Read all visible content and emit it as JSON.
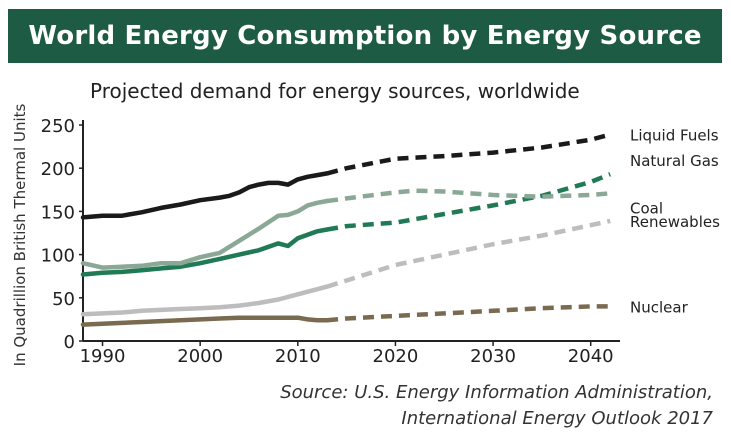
{
  "header": {
    "title": "World Energy Consumption by Energy Source"
  },
  "subtitle": "Projected demand for energy sources, worldwide",
  "source": {
    "line1": "Source: U.S. Energy Information Administration,",
    "line2": "International Energy Outlook 2017"
  },
  "colors": {
    "banner": "#1d5b45",
    "liquid_fuels": "#1a1a1a",
    "natural_gas": "#1f7a55",
    "coal": "#8aa895",
    "renewables": "#bdbdbd",
    "nuclear": "#7a6a50"
  },
  "chart_data": {
    "type": "line",
    "title": "World Energy Consumption by Energy Source",
    "subtitle": "Projected demand for energy sources, worldwide",
    "xlabel": "",
    "ylabel": "In Quadrillion British Thermal Units",
    "xlim": [
      1988,
      2043
    ],
    "ylim": [
      0,
      250
    ],
    "xticks": [
      "1990",
      "2000",
      "2010",
      "2020",
      "2030",
      "2040"
    ],
    "yticks": [
      "0",
      "50",
      "100",
      "150",
      "200",
      "250"
    ],
    "projection_start": 2012,
    "grid": false,
    "series": [
      {
        "name": "Liquid Fuels",
        "color": "#1a1a1a",
        "historical": [
          [
            1988,
            143
          ],
          [
            1990,
            145
          ],
          [
            1992,
            145
          ],
          [
            1994,
            149
          ],
          [
            1996,
            154
          ],
          [
            1998,
            158
          ],
          [
            2000,
            163
          ],
          [
            2002,
            166
          ],
          [
            2003,
            168
          ],
          [
            2004,
            172
          ],
          [
            2005,
            178
          ],
          [
            2006,
            181
          ],
          [
            2007,
            183
          ],
          [
            2008,
            183
          ],
          [
            2009,
            181
          ],
          [
            2010,
            187
          ],
          [
            2011,
            190
          ],
          [
            2012,
            192
          ],
          [
            2013,
            194
          ]
        ],
        "projected": [
          [
            2013,
            194
          ],
          [
            2015,
            200
          ],
          [
            2020,
            211
          ],
          [
            2025,
            214
          ],
          [
            2030,
            218
          ],
          [
            2035,
            224
          ],
          [
            2040,
            233
          ],
          [
            2042,
            239
          ]
        ]
      },
      {
        "name": "Natural Gas",
        "color": "#1f7a55",
        "historical": [
          [
            1988,
            77
          ],
          [
            1990,
            79
          ],
          [
            1992,
            80
          ],
          [
            1994,
            82
          ],
          [
            1996,
            84
          ],
          [
            1998,
            86
          ],
          [
            2000,
            90
          ],
          [
            2002,
            95
          ],
          [
            2004,
            100
          ],
          [
            2006,
            105
          ],
          [
            2008,
            113
          ],
          [
            2009,
            110
          ],
          [
            2010,
            119
          ],
          [
            2011,
            123
          ],
          [
            2012,
            127
          ],
          [
            2013,
            129
          ]
        ],
        "projected": [
          [
            2013,
            129
          ],
          [
            2015,
            133
          ],
          [
            2020,
            137
          ],
          [
            2025,
            147
          ],
          [
            2030,
            157
          ],
          [
            2035,
            168
          ],
          [
            2040,
            184
          ],
          [
            2042,
            193
          ]
        ]
      },
      {
        "name": "Coal",
        "color": "#8aa895",
        "historical": [
          [
            1988,
            90
          ],
          [
            1990,
            85
          ],
          [
            1992,
            86
          ],
          [
            1994,
            87
          ],
          [
            1996,
            90
          ],
          [
            1998,
            90
          ],
          [
            2000,
            97
          ],
          [
            2002,
            102
          ],
          [
            2004,
            116
          ],
          [
            2006,
            130
          ],
          [
            2008,
            145
          ],
          [
            2009,
            146
          ],
          [
            2010,
            150
          ],
          [
            2011,
            157
          ],
          [
            2012,
            160
          ],
          [
            2013,
            162
          ]
        ],
        "projected": [
          [
            2013,
            162
          ],
          [
            2015,
            165
          ],
          [
            2020,
            172
          ],
          [
            2022,
            174
          ],
          [
            2025,
            173
          ],
          [
            2030,
            169
          ],
          [
            2035,
            167
          ],
          [
            2040,
            169
          ],
          [
            2042,
            171
          ]
        ]
      },
      {
        "name": "Renewables",
        "color": "#bdbdbd",
        "historical": [
          [
            1988,
            31
          ],
          [
            1990,
            32
          ],
          [
            1992,
            33
          ],
          [
            1994,
            35
          ],
          [
            1996,
            36
          ],
          [
            1998,
            37
          ],
          [
            2000,
            38
          ],
          [
            2002,
            39
          ],
          [
            2004,
            41
          ],
          [
            2006,
            44
          ],
          [
            2008,
            48
          ],
          [
            2010,
            54
          ],
          [
            2012,
            60
          ],
          [
            2013,
            63
          ]
        ],
        "projected": [
          [
            2013,
            63
          ],
          [
            2015,
            70
          ],
          [
            2020,
            88
          ],
          [
            2025,
            100
          ],
          [
            2030,
            112
          ],
          [
            2035,
            122
          ],
          [
            2040,
            134
          ],
          [
            2042,
            139
          ]
        ]
      },
      {
        "name": "Nuclear",
        "color": "#7a6a50",
        "historical": [
          [
            1988,
            19
          ],
          [
            1990,
            20
          ],
          [
            1992,
            21
          ],
          [
            1994,
            22
          ],
          [
            1996,
            23
          ],
          [
            1998,
            24
          ],
          [
            2000,
            25
          ],
          [
            2002,
            26
          ],
          [
            2004,
            27
          ],
          [
            2006,
            27
          ],
          [
            2008,
            27
          ],
          [
            2010,
            27
          ],
          [
            2011,
            25
          ],
          [
            2012,
            24
          ],
          [
            2013,
            24
          ]
        ],
        "projected": [
          [
            2013,
            24
          ],
          [
            2015,
            26
          ],
          [
            2020,
            29
          ],
          [
            2025,
            32
          ],
          [
            2030,
            35
          ],
          [
            2035,
            38
          ],
          [
            2040,
            40
          ],
          [
            2042,
            40
          ]
        ]
      }
    ]
  }
}
